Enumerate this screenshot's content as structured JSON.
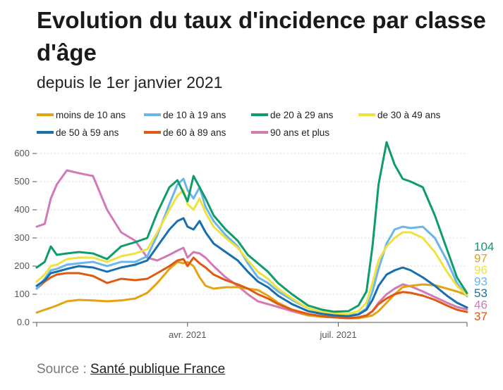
{
  "header": {
    "title": "Evolution du taux d'incidence par classe d'âge",
    "subtitle": "depuis le 1er janvier 2021"
  },
  "source": {
    "prefix": "Source : ",
    "link_label": "Santé publique France"
  },
  "colors": {
    "moins10": "#e4a313",
    "10a19": "#6ab5ea",
    "20a29": "#0e9c6a",
    "30a49": "#f0e23e",
    "50a59": "#176fb0",
    "60a89": "#dd5a12",
    "90plus": "#d27ab5",
    "axis": "#555555",
    "grid": "#d9d9d9"
  },
  "chart_data": {
    "type": "line",
    "title": "Evolution du taux d'incidence par classe d'âge",
    "subtitle": "depuis le 1er janvier 2021",
    "xlabel": "",
    "ylabel": "",
    "x_unit": "days since 2021-01-01",
    "xlim": [
      0,
      214
    ],
    "ylim": [
      0,
      620
    ],
    "y_ticks": [
      0,
      100,
      200,
      300,
      400,
      500,
      600
    ],
    "y_tick_labels": [
      "0.0",
      "100",
      "200",
      "300",
      "400",
      "500",
      "600"
    ],
    "x_ticks": [
      {
        "day": 0,
        "label": ""
      },
      {
        "day": 75,
        "label": "avr. 2021"
      },
      {
        "day": 150,
        "label": "juil. 2021"
      },
      {
        "day": 214,
        "label": ""
      }
    ],
    "x": [
      0,
      4,
      7,
      10,
      15,
      21,
      28,
      35,
      42,
      49,
      55,
      60,
      66,
      70,
      73,
      75,
      78,
      81,
      84,
      88,
      94,
      100,
      105,
      110,
      115,
      120,
      127,
      135,
      142,
      148,
      155,
      160,
      164,
      167,
      170,
      174,
      178,
      182,
      186,
      192,
      198,
      204,
      209,
      214
    ],
    "series": [
      {
        "key": "moins10",
        "name": "moins de 10 ans",
        "end_label": "97",
        "values": [
          35,
          45,
          52,
          60,
          75,
          80,
          78,
          75,
          78,
          85,
          105,
          140,
          190,
          215,
          210,
          215,
          200,
          160,
          130,
          120,
          125,
          125,
          120,
          115,
          95,
          70,
          45,
          25,
          20,
          18,
          15,
          15,
          20,
          25,
          40,
          70,
          100,
          125,
          130,
          135,
          132,
          120,
          110,
          97
        ]
      },
      {
        "key": "10a19",
        "name": "de 10 à 19 ans",
        "end_label": "93",
        "values": [
          120,
          155,
          185,
          190,
          205,
          210,
          215,
          200,
          215,
          215,
          235,
          310,
          420,
          490,
          510,
          470,
          440,
          480,
          410,
          360,
          310,
          270,
          210,
          160,
          140,
          110,
          80,
          50,
          35,
          28,
          25,
          30,
          50,
          110,
          190,
          280,
          330,
          340,
          335,
          340,
          300,
          220,
          140,
          93
        ]
      },
      {
        "key": "20a29",
        "name": "de 20 à 29 ans",
        "end_label": "104",
        "values": [
          195,
          215,
          270,
          240,
          245,
          250,
          245,
          225,
          270,
          285,
          300,
          390,
          480,
          505,
          460,
          430,
          520,
          480,
          440,
          380,
          330,
          290,
          240,
          210,
          180,
          140,
          100,
          60,
          45,
          38,
          40,
          60,
          110,
          270,
          490,
          640,
          560,
          510,
          500,
          480,
          380,
          260,
          160,
          104
        ]
      },
      {
        "key": "30a49",
        "name": "de 30 à 49 ans",
        "end_label": "96",
        "values": [
          145,
          170,
          200,
          205,
          225,
          230,
          230,
          215,
          235,
          245,
          260,
          320,
          400,
          450,
          470,
          420,
          400,
          440,
          390,
          340,
          300,
          265,
          220,
          180,
          155,
          120,
          85,
          50,
          38,
          32,
          30,
          40,
          70,
          140,
          220,
          270,
          300,
          320,
          320,
          300,
          250,
          180,
          130,
          96
        ]
      },
      {
        "key": "50a59",
        "name": "de 50 à 59 ans",
        "end_label": "53",
        "values": [
          130,
          150,
          175,
          180,
          190,
          200,
          195,
          180,
          195,
          205,
          220,
          270,
          330,
          360,
          370,
          340,
          330,
          360,
          320,
          280,
          250,
          220,
          180,
          145,
          125,
          95,
          65,
          40,
          30,
          25,
          22,
          28,
          45,
          80,
          130,
          170,
          185,
          195,
          185,
          160,
          130,
          95,
          70,
          53
        ]
      },
      {
        "key": "60a89",
        "name": "de 60 à 89 ans",
        "end_label": "37",
        "values": [
          120,
          145,
          160,
          170,
          175,
          175,
          165,
          140,
          155,
          150,
          155,
          175,
          200,
          220,
          225,
          200,
          230,
          210,
          195,
          170,
          150,
          135,
          120,
          100,
          85,
          65,
          45,
          30,
          22,
          18,
          15,
          18,
          25,
          40,
          65,
          85,
          100,
          108,
          105,
          95,
          80,
          60,
          45,
          37
        ]
      },
      {
        "key": "90plus",
        "name": "90 ans et plus",
        "end_label": "46",
        "values": [
          340,
          350,
          440,
          490,
          540,
          530,
          520,
          400,
          320,
          290,
          230,
          220,
          240,
          255,
          265,
          230,
          250,
          245,
          230,
          200,
          160,
          130,
          100,
          75,
          65,
          55,
          40,
          25,
          20,
          18,
          15,
          18,
          25,
          40,
          70,
          100,
          120,
          135,
          128,
          110,
          90,
          70,
          55,
          46
        ]
      }
    ],
    "legend": [
      {
        "key": "moins10",
        "label": "moins de 10 ans"
      },
      {
        "key": "10a19",
        "label": "de 10 à 19 ans"
      },
      {
        "key": "20a29",
        "label": "de 20 à 29 ans"
      },
      {
        "key": "30a49",
        "label": "de 30 à 49 ans"
      },
      {
        "key": "50a59",
        "label": "de 50 à 59 ans"
      },
      {
        "key": "60a89",
        "label": "de 60 à 89 ans"
      },
      {
        "key": "90plus",
        "label": "90 ans et plus"
      }
    ],
    "end_labels_order": [
      "104",
      "97",
      "96",
      "93",
      "53",
      "46",
      "37"
    ],
    "legend_position": "top",
    "grid": "horizontal dotted"
  }
}
